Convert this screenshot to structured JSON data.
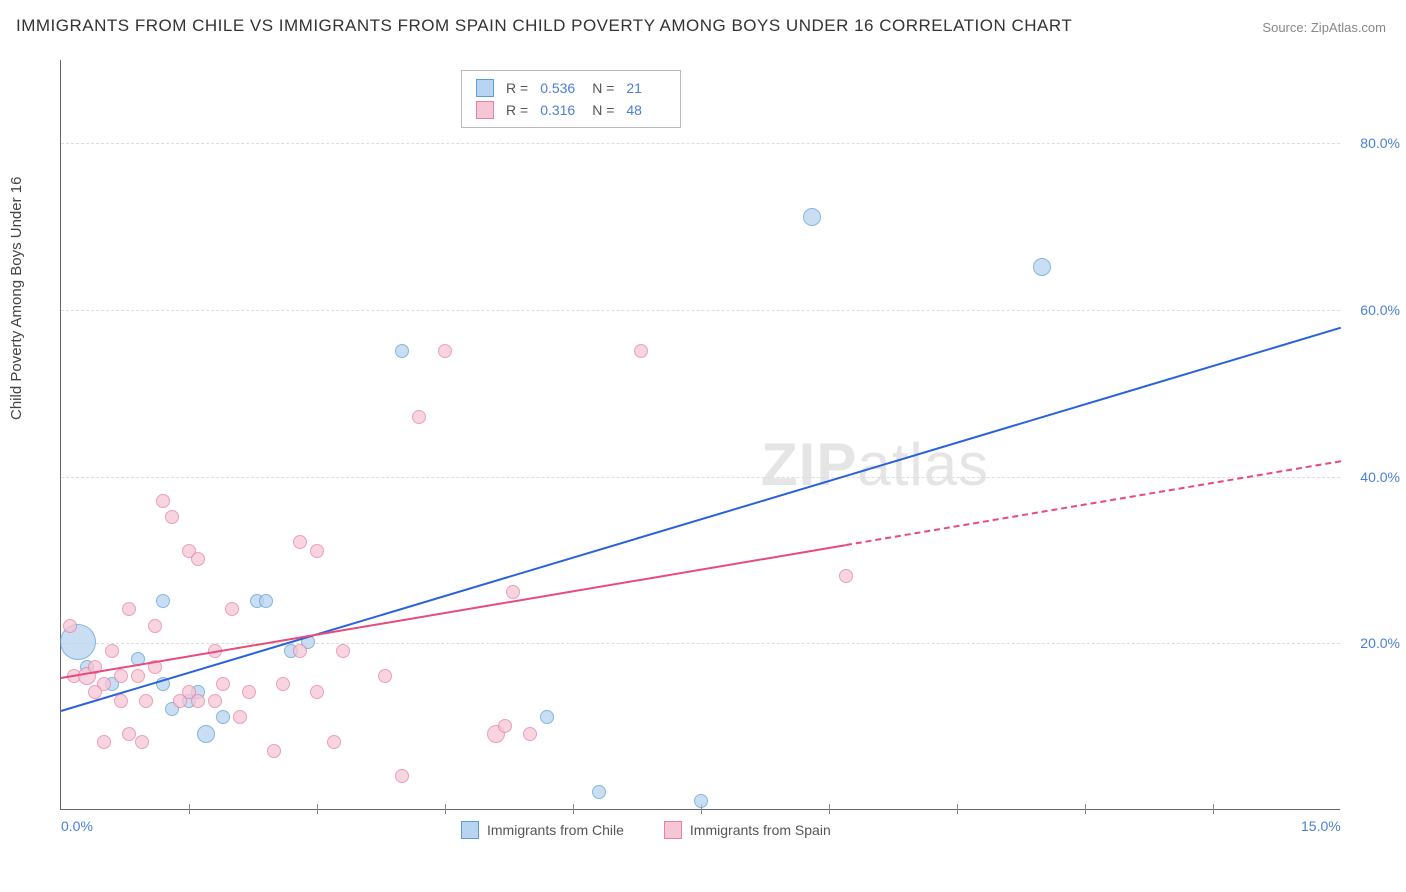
{
  "title": "IMMIGRANTS FROM CHILE VS IMMIGRANTS FROM SPAIN CHILD POVERTY AMONG BOYS UNDER 16 CORRELATION CHART",
  "source_label": "Source:",
  "source_name": "ZipAtlas.com",
  "y_axis_label": "Child Poverty Among Boys Under 16",
  "watermark_zip": "ZIP",
  "watermark_atlas": "atlas",
  "chart": {
    "type": "scatter",
    "xlim": [
      0,
      15
    ],
    "ylim": [
      0,
      90
    ],
    "x_ticks_minor_pct": [
      1.5,
      3.0,
      4.5,
      6.0,
      7.5,
      9.0,
      10.5,
      12.0,
      13.5
    ],
    "x_tick_labels": [
      {
        "pos_pct": 0,
        "label": "0.0%"
      },
      {
        "pos_pct": 100,
        "label": "15.0%"
      }
    ],
    "y_ticks": [
      {
        "val": 20,
        "label": "20.0%"
      },
      {
        "val": 40,
        "label": "40.0%"
      },
      {
        "val": 60,
        "label": "60.0%"
      },
      {
        "val": 80,
        "label": "80.0%"
      }
    ],
    "grid_color": "#dddddd",
    "background_color": "#ffffff",
    "axis_color": "#666666",
    "tick_label_color": "#4a7fd8",
    "series": [
      {
        "name": "Immigrants from Chile",
        "color_fill": "#b8d4f0",
        "color_stroke": "#5a9fd4",
        "trend_color": "#2962d9",
        "R": "0.536",
        "N": "21",
        "trend": {
          "x1": 0,
          "y1": 12,
          "x2": 15,
          "y2": 58
        },
        "trend_dash_from_x": null,
        "points": [
          {
            "x": 0.2,
            "y": 20,
            "r": 18
          },
          {
            "x": 0.3,
            "y": 17,
            "r": 7
          },
          {
            "x": 0.6,
            "y": 15,
            "r": 7
          },
          {
            "x": 1.2,
            "y": 15,
            "r": 7
          },
          {
            "x": 1.3,
            "y": 12,
            "r": 7
          },
          {
            "x": 1.2,
            "y": 25,
            "r": 7
          },
          {
            "x": 1.7,
            "y": 9,
            "r": 9
          },
          {
            "x": 1.9,
            "y": 11,
            "r": 7
          },
          {
            "x": 2.3,
            "y": 25,
            "r": 7
          },
          {
            "x": 2.4,
            "y": 25,
            "r": 7
          },
          {
            "x": 2.7,
            "y": 19,
            "r": 7
          },
          {
            "x": 2.9,
            "y": 20,
            "r": 7
          },
          {
            "x": 4.0,
            "y": 55,
            "r": 7
          },
          {
            "x": 5.7,
            "y": 11,
            "r": 7
          },
          {
            "x": 6.3,
            "y": 2,
            "r": 7
          },
          {
            "x": 7.5,
            "y": 1,
            "r": 7
          },
          {
            "x": 8.8,
            "y": 71,
            "r": 9
          },
          {
            "x": 11.5,
            "y": 65,
            "r": 9
          },
          {
            "x": 1.5,
            "y": 13,
            "r": 7
          },
          {
            "x": 1.6,
            "y": 14,
            "r": 7
          },
          {
            "x": 0.9,
            "y": 18,
            "r": 7
          }
        ]
      },
      {
        "name": "Immigrants from Spain",
        "color_fill": "#f5c6d6",
        "color_stroke": "#e87fa5",
        "trend_color": "#e84a7a",
        "R": "0.316",
        "N": "48",
        "trend": {
          "x1": 0,
          "y1": 16,
          "x2": 15,
          "y2": 42
        },
        "trend_dash_from_x": 9.2,
        "points": [
          {
            "x": 0.1,
            "y": 22,
            "r": 7
          },
          {
            "x": 0.15,
            "y": 16,
            "r": 7
          },
          {
            "x": 0.3,
            "y": 16,
            "r": 9
          },
          {
            "x": 0.4,
            "y": 17,
            "r": 7
          },
          {
            "x": 0.5,
            "y": 15,
            "r": 7
          },
          {
            "x": 0.5,
            "y": 8,
            "r": 7
          },
          {
            "x": 0.6,
            "y": 19,
            "r": 7
          },
          {
            "x": 0.7,
            "y": 16,
            "r": 7
          },
          {
            "x": 0.8,
            "y": 24,
            "r": 7
          },
          {
            "x": 0.8,
            "y": 9,
            "r": 7
          },
          {
            "x": 0.9,
            "y": 16,
            "r": 7
          },
          {
            "x": 0.95,
            "y": 8,
            "r": 7
          },
          {
            "x": 1.0,
            "y": 13,
            "r": 7
          },
          {
            "x": 1.1,
            "y": 22,
            "r": 7
          },
          {
            "x": 1.2,
            "y": 37,
            "r": 7
          },
          {
            "x": 1.3,
            "y": 35,
            "r": 7
          },
          {
            "x": 1.4,
            "y": 13,
            "r": 7
          },
          {
            "x": 1.5,
            "y": 14,
            "r": 7
          },
          {
            "x": 1.5,
            "y": 31,
            "r": 7
          },
          {
            "x": 1.6,
            "y": 13,
            "r": 7
          },
          {
            "x": 1.6,
            "y": 30,
            "r": 7
          },
          {
            "x": 1.8,
            "y": 13,
            "r": 7
          },
          {
            "x": 1.8,
            "y": 19,
            "r": 7
          },
          {
            "x": 2.0,
            "y": 24,
            "r": 7
          },
          {
            "x": 2.1,
            "y": 11,
            "r": 7
          },
          {
            "x": 2.2,
            "y": 14,
            "r": 7
          },
          {
            "x": 2.5,
            "y": 7,
            "r": 7
          },
          {
            "x": 2.8,
            "y": 32,
            "r": 7
          },
          {
            "x": 2.8,
            "y": 19,
            "r": 7
          },
          {
            "x": 3.0,
            "y": 14,
            "r": 7
          },
          {
            "x": 3.0,
            "y": 31,
            "r": 7
          },
          {
            "x": 3.2,
            "y": 8,
            "r": 7
          },
          {
            "x": 3.3,
            "y": 19,
            "r": 7
          },
          {
            "x": 3.8,
            "y": 16,
            "r": 7
          },
          {
            "x": 4.0,
            "y": 4,
            "r": 7
          },
          {
            "x": 4.2,
            "y": 47,
            "r": 7
          },
          {
            "x": 4.5,
            "y": 55,
            "r": 7
          },
          {
            "x": 5.1,
            "y": 9,
            "r": 9
          },
          {
            "x": 5.2,
            "y": 10,
            "r": 7
          },
          {
            "x": 5.3,
            "y": 26,
            "r": 7
          },
          {
            "x": 5.5,
            "y": 9,
            "r": 7
          },
          {
            "x": 6.8,
            "y": 55,
            "r": 7
          },
          {
            "x": 9.2,
            "y": 28,
            "r": 7
          },
          {
            "x": 1.1,
            "y": 17,
            "r": 7
          },
          {
            "x": 0.4,
            "y": 14,
            "r": 7
          },
          {
            "x": 0.7,
            "y": 13,
            "r": 7
          },
          {
            "x": 1.9,
            "y": 15,
            "r": 7
          },
          {
            "x": 2.6,
            "y": 15,
            "r": 7
          }
        ]
      }
    ]
  },
  "legend_labels": {
    "R": "R =",
    "N": "N ="
  }
}
